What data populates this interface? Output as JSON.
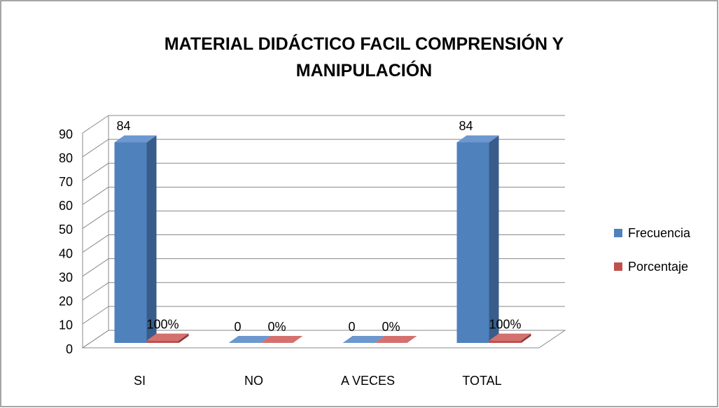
{
  "chart_data": {
    "type": "bar3d",
    "title": "MATERIAL DIDÁCTICO FACIL COMPRENSIÓN Y MANIPULACIÓN",
    "categories": [
      "SI",
      "NO",
      "A VECES",
      "TOTAL"
    ],
    "series": [
      {
        "name": "Frecuencia",
        "color": "#4f81bd",
        "values": [
          84,
          0,
          0,
          84
        ]
      },
      {
        "name": "Porcentaje",
        "color": "#c0504d",
        "values": [
          1,
          0,
          0,
          1
        ],
        "value_labels": [
          "100%",
          "0%",
          "0%",
          "100%"
        ]
      }
    ],
    "ylim": [
      0,
      90
    ],
    "yticks": [
      0,
      10,
      20,
      30,
      40,
      50,
      60,
      70,
      80,
      90
    ],
    "grid": true,
    "legend": "right"
  }
}
